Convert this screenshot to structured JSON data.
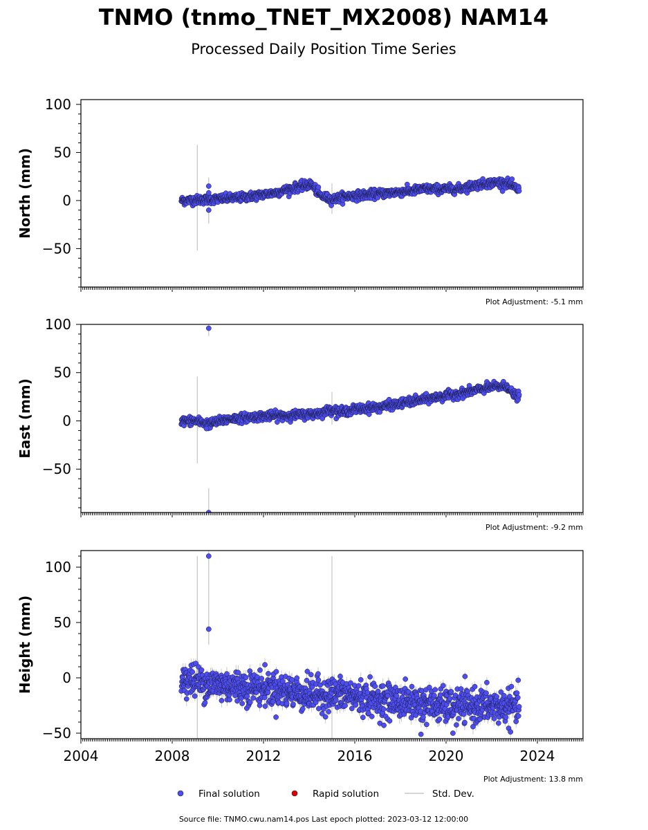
{
  "page": {
    "title": "TNMO (tnmo_TNET_MX2008) NAM14",
    "subtitle": "Processed Daily Position Time Series",
    "source_note": "Source file: TNMO.cwu.nam14.pos  Last epoch plotted: 2023-03-12 12:00:00"
  },
  "legend": {
    "items": [
      {
        "label": "Final solution",
        "kind": "marker",
        "color": "#4d4df2"
      },
      {
        "label": "Rapid solution",
        "kind": "marker",
        "color": "#e00000"
      },
      {
        "label": "Std. Dev.",
        "kind": "line",
        "color": "#c8c8c8"
      }
    ]
  },
  "chart_data": [
    {
      "type": "scatter",
      "ylabel": "North (mm)",
      "xlim": [
        2004,
        2026
      ],
      "ylim": [
        -90,
        105
      ],
      "yticks": [
        -50,
        0,
        50,
        100
      ],
      "x_tick_labels_shown": false,
      "adjustment": "Plot Adjustment: -5.1 mm",
      "series_name": "Final solution",
      "trend": [
        [
          2008.4,
          0
        ],
        [
          2009.5,
          1
        ],
        [
          2011.0,
          3
        ],
        [
          2012.5,
          8
        ],
        [
          2013.3,
          13
        ],
        [
          2014.1,
          17
        ],
        [
          2014.5,
          5
        ],
        [
          2015.0,
          1
        ],
        [
          2015.5,
          4
        ],
        [
          2017.0,
          7
        ],
        [
          2018.5,
          10
        ],
        [
          2019.0,
          12
        ],
        [
          2020.5,
          12
        ],
        [
          2021.5,
          17
        ],
        [
          2022.3,
          19
        ],
        [
          2022.7,
          18
        ],
        [
          2023.2,
          11
        ]
      ],
      "scatter_sd": 2.2,
      "err_base": 2.5,
      "outliers": [
        [
          2009.6,
          15
        ],
        [
          2009.6,
          -10
        ],
        [
          2009.6,
          8
        ]
      ],
      "big_err": [
        [
          2009.1,
          58,
          -52
        ],
        [
          2009.6,
          24,
          -24
        ],
        [
          2015.0,
          18,
          -14
        ]
      ]
    },
    {
      "type": "scatter",
      "ylabel": "East (mm)",
      "xlim": [
        2004,
        2026
      ],
      "ylim": [
        -95,
        100
      ],
      "yticks": [
        -50,
        0,
        50,
        100
      ],
      "x_tick_labels_shown": false,
      "adjustment": "Plot Adjustment: -9.2 mm",
      "series_name": "Final solution",
      "trend": [
        [
          2008.4,
          0
        ],
        [
          2009.0,
          0
        ],
        [
          2009.6,
          -3
        ],
        [
          2010.5,
          2
        ],
        [
          2012.0,
          5
        ],
        [
          2013.5,
          6
        ],
        [
          2014.5,
          8
        ],
        [
          2015.0,
          12
        ],
        [
          2015.4,
          9
        ],
        [
          2016.0,
          12
        ],
        [
          2017.0,
          14
        ],
        [
          2018.0,
          18
        ],
        [
          2019.0,
          22
        ],
        [
          2020.0,
          26
        ],
        [
          2021.0,
          30
        ],
        [
          2022.0,
          35
        ],
        [
          2022.7,
          36
        ],
        [
          2022.9,
          28
        ],
        [
          2023.2,
          25
        ]
      ],
      "scatter_sd": 2.2,
      "err_base": 2.5,
      "outliers": [
        [
          2009.6,
          96
        ],
        [
          2009.6,
          -95
        ],
        [
          2009.5,
          -8
        ]
      ],
      "big_err": [
        [
          2009.1,
          46,
          -44
        ],
        [
          2009.6,
          103,
          88
        ],
        [
          2009.6,
          -70,
          -95
        ],
        [
          2015.0,
          30,
          -4
        ]
      ]
    },
    {
      "type": "scatter",
      "ylabel": "Height (mm)",
      "xlim": [
        2004,
        2026
      ],
      "ylim": [
        -55,
        115
      ],
      "yticks": [
        -50,
        0,
        50,
        100
      ],
      "x_tick_labels_shown": true,
      "x_tick_labels": [
        "2004",
        "2008",
        "2012",
        "2016",
        "2020",
        "2024"
      ],
      "adjustment": "Plot Adjustment: 13.8 mm",
      "series_name": "Final solution",
      "trend": [
        [
          2008.4,
          0
        ],
        [
          2009.5,
          -5
        ],
        [
          2011.0,
          -8
        ],
        [
          2012.5,
          -10
        ],
        [
          2014.0,
          -15
        ],
        [
          2015.5,
          -15
        ],
        [
          2017.0,
          -20
        ],
        [
          2018.5,
          -22
        ],
        [
          2020.0,
          -26
        ],
        [
          2021.5,
          -25
        ],
        [
          2023.2,
          -27
        ]
      ],
      "scatter_sd": 7.5,
      "err_base": 5,
      "outliers": [
        [
          2009.6,
          110
        ],
        [
          2009.6,
          44
        ],
        [
          2018.9,
          -51
        ],
        [
          2020.3,
          -50
        ]
      ],
      "big_err": [
        [
          2009.1,
          110,
          -55
        ],
        [
          2009.6,
          115,
          30
        ],
        [
          2015.0,
          110,
          -55
        ]
      ]
    }
  ]
}
